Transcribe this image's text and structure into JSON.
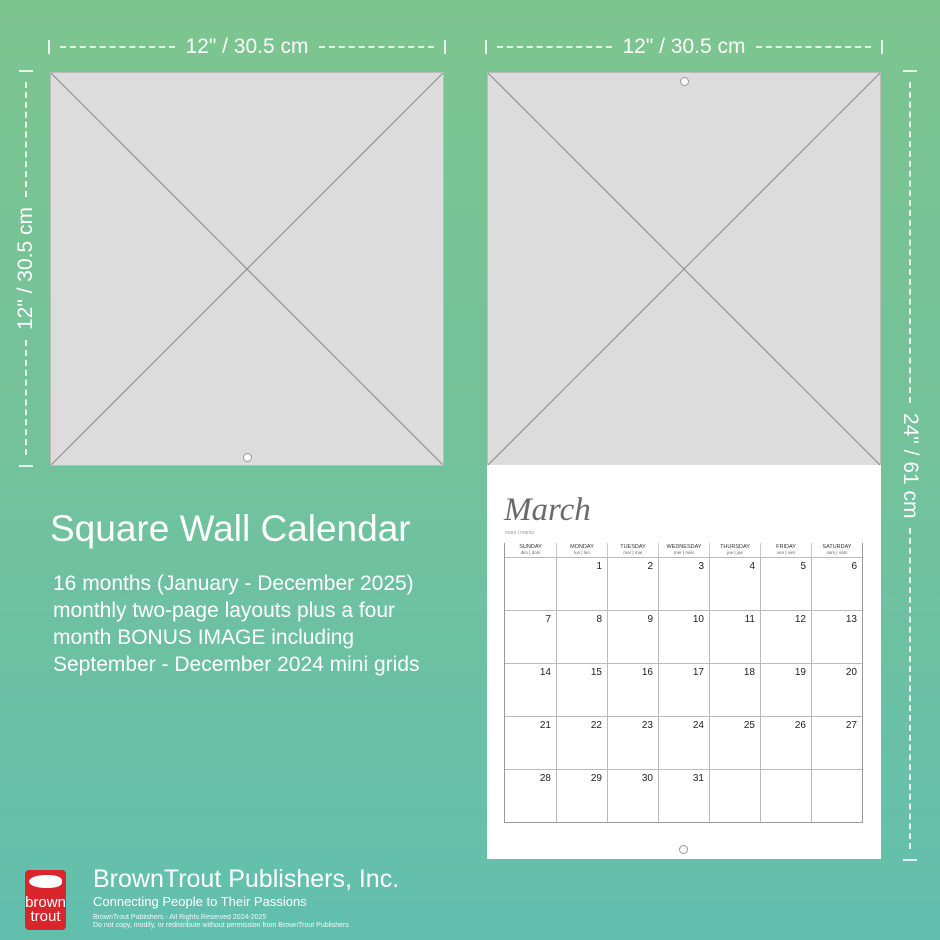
{
  "dimensions": {
    "top_left": "12\" / 30.5 cm",
    "top_right": "12\" / 30.5 cm",
    "left": "12\" / 30.5 cm",
    "right": "24\" / 61 cm"
  },
  "product": {
    "title": "Square Wall Calendar",
    "description": [
      "16 months (January - December 2025)",
      "monthly two-page layouts plus a four",
      "month BONUS IMAGE including",
      "September - December 2024 mini grids"
    ]
  },
  "calendar": {
    "month": "March",
    "month_sub": "mars | marzo",
    "days": [
      {
        "name": "SUNDAY",
        "sub": "dim | dom"
      },
      {
        "name": "MONDAY",
        "sub": "lun | lun"
      },
      {
        "name": "TUESDAY",
        "sub": "mar | mar"
      },
      {
        "name": "WEDNESDAY",
        "sub": "mer | miér"
      },
      {
        "name": "THURSDAY",
        "sub": "jue | jue"
      },
      {
        "name": "FRIDAY",
        "sub": "ven | vier"
      },
      {
        "name": "SATURDAY",
        "sub": "sam | sám"
      }
    ],
    "weeks": [
      [
        "",
        "1",
        "2",
        "3",
        "4",
        "5",
        "6"
      ],
      [
        "7",
        "8",
        "9",
        "10",
        "11",
        "12",
        "13"
      ],
      [
        "14",
        "15",
        "16",
        "17",
        "18",
        "19",
        "20"
      ],
      [
        "21",
        "22",
        "23",
        "24",
        "25",
        "26",
        "27"
      ],
      [
        "28",
        "29",
        "30",
        "31",
        "",
        "",
        ""
      ]
    ]
  },
  "footer": {
    "logo": "brown trout",
    "brand": "BrownTrout Publishers, Inc.",
    "tagline": "Connecting People to Their Passions",
    "rights": "BrownTrout Publishers - All Rights Reserved 2024-2025",
    "notice": "Do not copy, modify, or redistribute without permission from BrownTrout Publishers"
  }
}
